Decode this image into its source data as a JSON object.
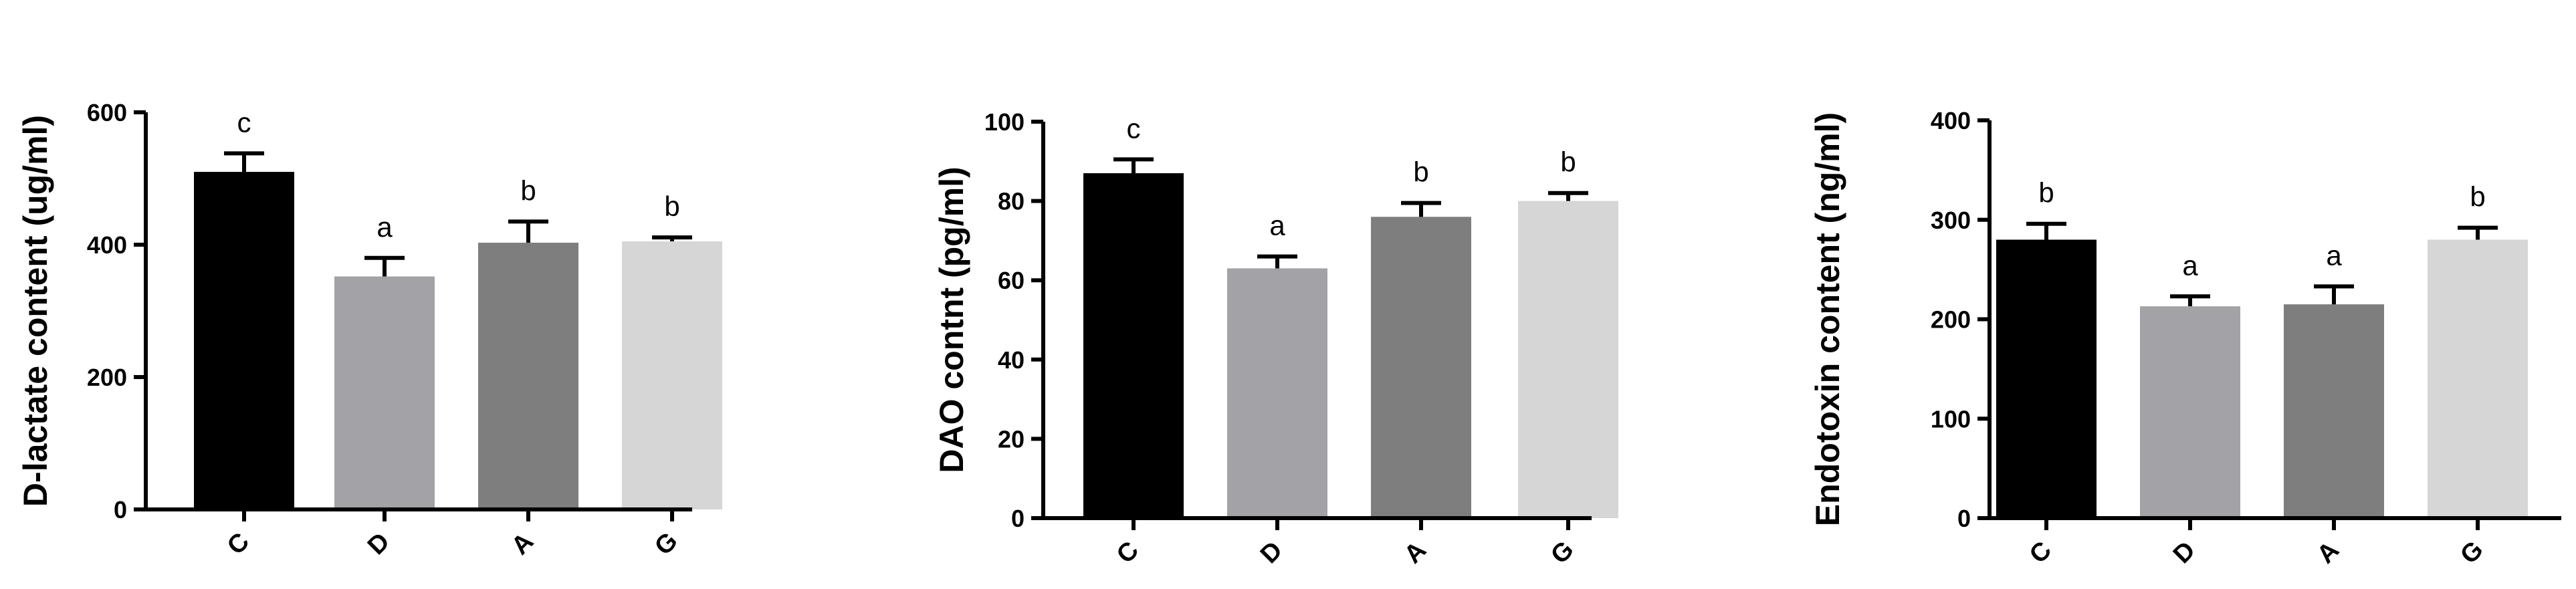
{
  "chart_data": [
    {
      "type": "bar",
      "categories": [
        "C",
        "D",
        "A",
        "G"
      ],
      "values": [
        510,
        352,
        403,
        405
      ],
      "errors": [
        28,
        28,
        32,
        6
      ],
      "significance": [
        "c",
        "a",
        "b",
        "b"
      ],
      "colors": [
        "#000000",
        "#a2a2a7",
        "#7e7e7e",
        "#d6d6d6"
      ],
      "title": "",
      "xlabel": "",
      "ylabel": "D-lactate content (ug/ml)",
      "ylim": [
        0,
        600
      ],
      "yticks": [
        0,
        200,
        400,
        600
      ],
      "grid": false
    },
    {
      "type": "bar",
      "categories": [
        "C",
        "D",
        "A",
        "G"
      ],
      "values": [
        87,
        63,
        76,
        80
      ],
      "errors": [
        3.5,
        3,
        3.5,
        2
      ],
      "significance": [
        "c",
        "a",
        "b",
        "b"
      ],
      "colors": [
        "#000000",
        "#a2a2a7",
        "#7e7e7e",
        "#d6d6d6"
      ],
      "title": "",
      "xlabel": "",
      "ylabel": "DAO contnt (pg/ml)",
      "ylim": [
        0,
        100
      ],
      "yticks": [
        0,
        20,
        40,
        60,
        80,
        100
      ],
      "grid": false
    },
    {
      "type": "bar",
      "categories": [
        "C",
        "D",
        "A",
        "G"
      ],
      "values": [
        280,
        213,
        215,
        280
      ],
      "errors": [
        16,
        10,
        18,
        12
      ],
      "significance": [
        "b",
        "a",
        "a",
        "b"
      ],
      "colors": [
        "#000000",
        "#a2a2a7",
        "#7e7e7e",
        "#d6d6d6"
      ],
      "title": "",
      "xlabel": "",
      "ylabel": "Endotoxin content (ng/ml)",
      "ylim": [
        0,
        400
      ],
      "yticks": [
        0,
        100,
        200,
        300,
        400
      ],
      "grid": false
    }
  ]
}
